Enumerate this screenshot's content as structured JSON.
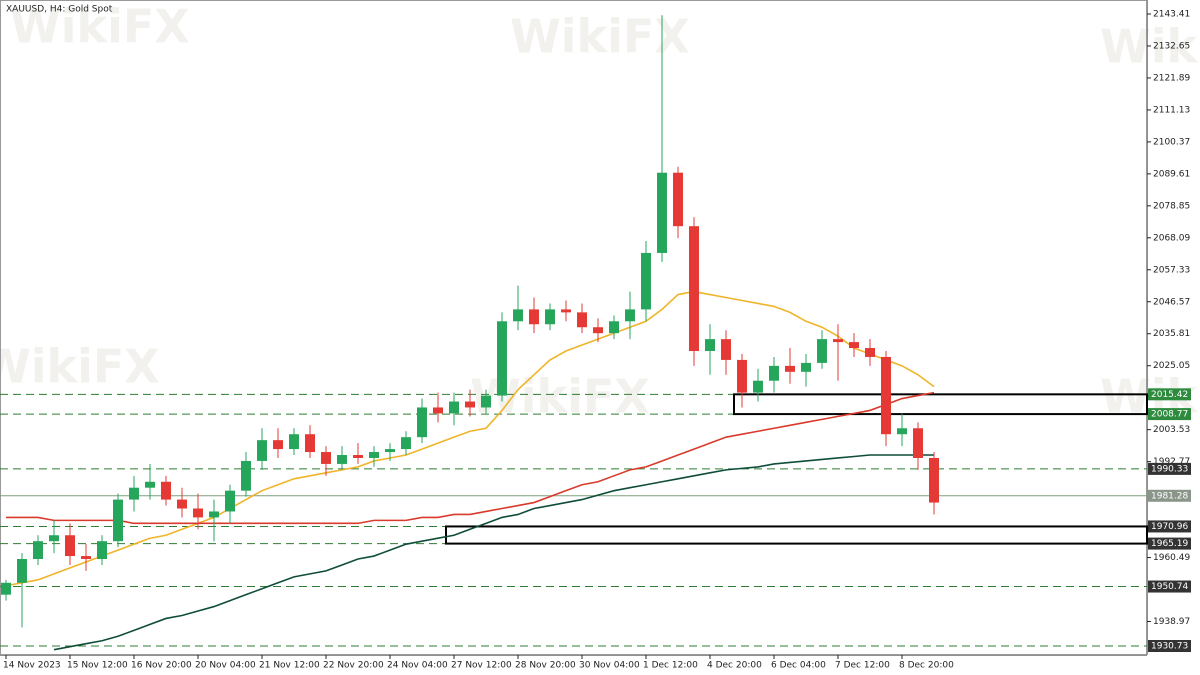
{
  "chart_data": {
    "type": "candlestick",
    "title": "XAUUSD, H4:  Gold Spot",
    "watermark": "WikiFX",
    "up_color": "#26a65b",
    "down_color": "#e53935",
    "categories": [
      "14 Nov 2023",
      null,
      null,
      null,
      "15 Nov 12:00",
      null,
      null,
      null,
      "16 Nov 20:00",
      null,
      null,
      null,
      "20 Nov 04:00",
      null,
      null,
      null,
      "21 Nov 12:00",
      null,
      null,
      null,
      "22 Nov 20:00",
      null,
      null,
      null,
      "24 Nov 04:00",
      null,
      null,
      null,
      "27 Nov 12:00",
      null,
      null,
      null,
      "28 Nov 20:00",
      null,
      null,
      null,
      "30 Nov 04:00",
      null,
      null,
      null,
      "1 Dec 12:00",
      null,
      null,
      null,
      "4 Dec 20:00",
      null,
      null,
      null,
      "6 Dec 04:00",
      null,
      null,
      null,
      "7 Dec 12:00",
      null,
      null,
      null,
      "8 Dec 20:00",
      null,
      null
    ],
    "open": [
      1948,
      1952,
      1960,
      1966,
      1968,
      1961,
      1960,
      1966,
      1980,
      1984,
      1986,
      1980,
      1977,
      1974,
      1976,
      1983,
      1993,
      2000,
      1997,
      2002,
      1996,
      1992,
      1995,
      1994,
      1996,
      1997,
      2001,
      2011,
      2009,
      2013,
      2011,
      2015,
      2040,
      2044,
      2039,
      2044,
      2043,
      2038,
      2036,
      2040,
      2044,
      2063,
      2090,
      2072,
      2030,
      2034,
      2027,
      2016,
      2020,
      2025,
      2023,
      2026,
      2034,
      2033,
      2031,
      2028,
      2002,
      2004,
      1994
    ],
    "high": [
      1953,
      1962,
      1968,
      1973,
      1972,
      1965,
      1968,
      1982,
      1988,
      1992,
      1988,
      1984,
      1982,
      1980,
      1985,
      1996,
      2004,
      2004,
      2004,
      2005,
      1998,
      1998,
      1999,
      1998,
      1999,
      2003,
      2014,
      2016,
      2016,
      2017,
      2017,
      2043,
      2052,
      2048,
      2046,
      2047,
      2046,
      2041,
      2042,
      2050,
      2067,
      2143,
      2092,
      2075,
      2039,
      2037,
      2029,
      2024,
      2028,
      2031,
      2029,
      2037,
      2039,
      2036,
      2034,
      2030,
      2009,
      2006,
      1996
    ],
    "low": [
      1946,
      1937,
      1958,
      1962,
      1958,
      1956,
      1958,
      1964,
      1976,
      1980,
      1978,
      1974,
      1970,
      1966,
      1972,
      1981,
      1990,
      1994,
      1995,
      1994,
      1988,
      1990,
      1992,
      1991,
      1993,
      1995,
      1999,
      2006,
      2005,
      2008,
      2009,
      2013,
      2037,
      2036,
      2037,
      2040,
      2036,
      2033,
      2034,
      2034,
      2040,
      2060,
      2068,
      2025,
      2022,
      2022,
      2011,
      2013,
      2016,
      2019,
      2018,
      2024,
      2020,
      2028,
      2025,
      1998,
      1998,
      1990,
      1975
    ],
    "close": [
      1952,
      1960,
      1966,
      1968,
      1961,
      1960,
      1966,
      1980,
      1984,
      1986,
      1980,
      1977,
      1974,
      1976,
      1983,
      1993,
      2000,
      1997,
      2002,
      1996,
      1992,
      1995,
      1994,
      1996,
      1997,
      2001,
      2011,
      2009,
      2013,
      2011,
      2015,
      2040,
      2044,
      2039,
      2044,
      2043,
      2038,
      2036,
      2040,
      2044,
      2063,
      2090,
      2072,
      2030,
      2034,
      2027,
      2016,
      2020,
      2025,
      2023,
      2026,
      2034,
      2033,
      2031,
      2028,
      2002,
      2004,
      1994,
      1979
    ],
    "lines": [
      {
        "color": "#f0b429",
        "values": [
          1951,
          1952,
          1953,
          1955,
          1957,
          1959,
          1961,
          1963,
          1965,
          1967,
          1968,
          1970,
          1972,
          1974,
          1977,
          1980,
          1983,
          1985,
          1987,
          1988,
          1989,
          1990,
          1991,
          1993,
          1994,
          1995,
          1997,
          1999,
          2001,
          2003,
          2004,
          2010,
          2017,
          2022,
          2027,
          2030,
          2032,
          2034,
          2036,
          2038,
          2040,
          2044,
          2049,
          2050,
          2049,
          2048,
          2047,
          2046,
          2045,
          2043,
          2040,
          2038,
          2035,
          2031,
          2029,
          2027,
          2025,
          2022,
          2018
        ]
      },
      {
        "color": "#d93a2b",
        "values": [
          1974,
          1974,
          1974,
          1973,
          1973,
          1973,
          1973,
          1973,
          1972,
          1972,
          1972,
          1972,
          1972,
          1972,
          1972,
          1972,
          1972,
          1972,
          1972,
          1972,
          1972,
          1972,
          1972,
          1973,
          1973,
          1973,
          1974,
          1974,
          1975,
          1975,
          1976,
          1977,
          1978,
          1979,
          1981,
          1983,
          1985,
          1986,
          1988,
          1990,
          1991,
          1993,
          1995,
          1997,
          1999,
          2001,
          2002,
          2003,
          2004,
          2005,
          2006,
          2007,
          2008,
          2009,
          2010,
          2012,
          2014,
          2015,
          2016
        ]
      },
      {
        "color": "#0f4d3a",
        "values": [
          null,
          null,
          null,
          1929.5,
          1930.5,
          1931.5,
          1932.5,
          1934,
          1936,
          1938,
          1940,
          1941,
          1942.5,
          1944,
          1946,
          1948,
          1950,
          1952,
          1954,
          1955,
          1956,
          1958,
          1960,
          1961,
          1963,
          1965,
          1966,
          1967,
          1968,
          1970,
          1972,
          1974,
          1975,
          1977,
          1978,
          1979,
          1980,
          1981.5,
          1983,
          1984,
          1985,
          1986,
          1987,
          1988,
          1989,
          1990,
          1990.5,
          1991,
          1992,
          1992.5,
          1993,
          1993.5,
          1994,
          1994.5,
          1995,
          1995,
          1995,
          1995,
          1995
        ]
      }
    ],
    "ylim": [
      1927.7,
      2148.12
    ],
    "yticks": [
      2143.41,
      2132.65,
      2121.89,
      2111.13,
      2100.37,
      2089.61,
      2078.85,
      2068.09,
      2057.33,
      2046.57,
      2035.81,
      2025.05,
      2003.53,
      1992.77,
      1960.49,
      1938.97
    ],
    "levels": [
      {
        "value": 2015.42,
        "style": "dashed",
        "color": "#2e7d32",
        "label_color": "#2e8b3e"
      },
      {
        "value": 2008.77,
        "style": "dashed",
        "color": "#2e7d32",
        "label_color": "#2e8b3e"
      },
      {
        "value": 1990.33,
        "style": "dashed",
        "color": "#2e7d32",
        "label_color": "#333333"
      },
      {
        "value": 1981.28,
        "style": "solid",
        "color": "#7fa07f",
        "label_color": "#8a968a"
      },
      {
        "value": 1970.96,
        "style": "dashed",
        "color": "#2e7d32",
        "label_color": "#333333"
      },
      {
        "value": 1965.19,
        "style": "dashed",
        "color": "#2e7d32",
        "label_color": "#333333"
      },
      {
        "value": 1950.74,
        "style": "dashed",
        "color": "#2e7d32",
        "label_color": "#333333"
      },
      {
        "value": 1930.73,
        "style": "dashed",
        "color": "#2e7d32",
        "label_color": "#333333"
      }
    ],
    "zones": [
      {
        "from": 2008.77,
        "to": 2015.42,
        "start": 46
      },
      {
        "from": 1965.19,
        "to": 1970.96,
        "start": 28
      }
    ]
  }
}
